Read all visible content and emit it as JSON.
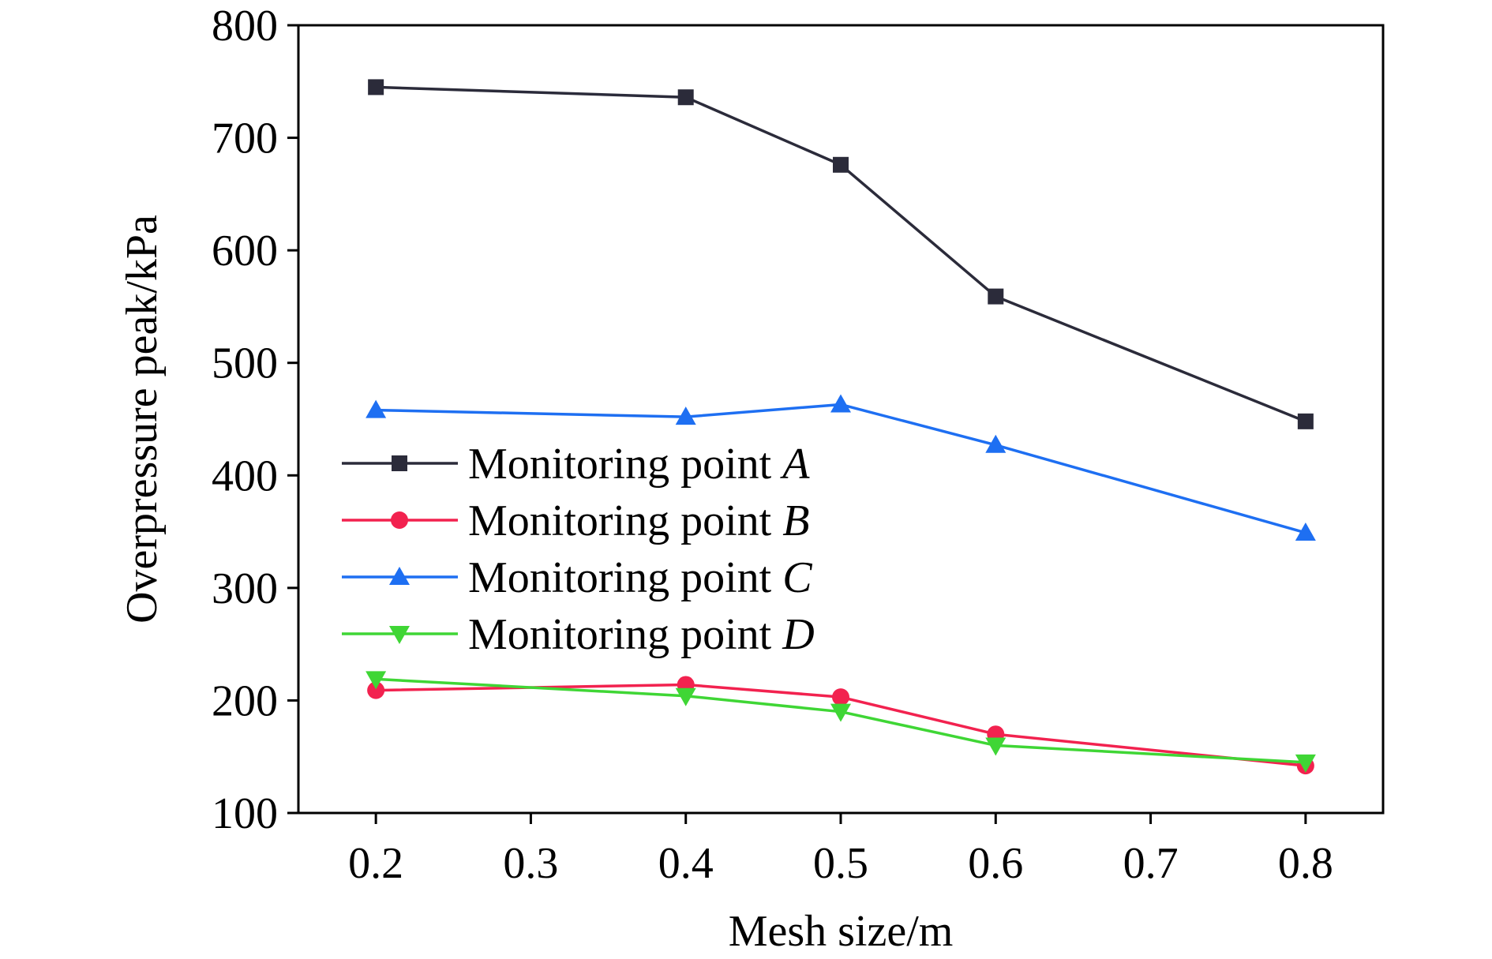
{
  "chart_data": {
    "type": "line",
    "xlabel": "Mesh size/m",
    "ylabel": "Overpressure peak/kPa",
    "xlim": [
      0.15,
      0.85
    ],
    "ylim": [
      100,
      800
    ],
    "xticks": [
      0.2,
      0.3,
      0.4,
      0.5,
      0.6,
      0.7,
      0.8
    ],
    "xtick_labels": [
      "0.2",
      "0.3",
      "0.4",
      "0.5",
      "0.6",
      "0.7",
      "0.8"
    ],
    "yticks": [
      100,
      200,
      300,
      400,
      500,
      600,
      700,
      800
    ],
    "ytick_labels": [
      "100",
      "200",
      "300",
      "400",
      "500",
      "600",
      "700",
      "800"
    ],
    "grid": false,
    "legend_position": "center-left",
    "x": [
      0.2,
      0.4,
      0.5,
      0.6,
      0.8
    ],
    "series": [
      {
        "name": "Monitoring point A",
        "label_prefix": "Monitoring point ",
        "label_var": "A",
        "marker": "square",
        "color": "#2b2b3a",
        "values": [
          745,
          736,
          676,
          559,
          448
        ]
      },
      {
        "name": "Monitoring point B",
        "label_prefix": "Monitoring point ",
        "label_var": "B",
        "marker": "circle",
        "color": "#f2224f",
        "values": [
          209,
          214,
          203,
          170,
          142
        ]
      },
      {
        "name": "Monitoring point C",
        "label_prefix": "Monitoring point ",
        "label_var": "C",
        "marker": "triangle-up",
        "color": "#1e6ff2",
        "values": [
          458,
          452,
          463,
          427,
          349
        ]
      },
      {
        "name": "Monitoring point D",
        "label_prefix": "Monitoring point ",
        "label_var": "D",
        "marker": "triangle-down",
        "color": "#3fd635",
        "values": [
          219,
          204,
          190,
          160,
          145
        ]
      }
    ]
  }
}
